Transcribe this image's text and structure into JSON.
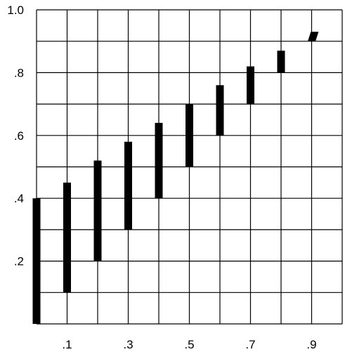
{
  "chart_data": {
    "type": "bar",
    "subtype": "floating-range",
    "title": "",
    "xlabel": "",
    "ylabel": "",
    "xlim": [
      0,
      1.0
    ],
    "ylim": [
      0,
      1.0
    ],
    "grid": true,
    "x_grid_step": 0.1,
    "y_grid_step": 0.1,
    "x_tick_values": [
      0.1,
      0.3,
      0.5,
      0.7,
      0.9
    ],
    "x_tick_labels": [
      ".1",
      ".3",
      ".5",
      ".7",
      ".9"
    ],
    "y_tick_values": [
      0.2,
      0.4,
      0.6,
      0.8,
      1.0
    ],
    "y_tick_labels": [
      ".2",
      ".4",
      ".6",
      ".8",
      "1.0"
    ],
    "bar_color": "#000000",
    "grid_color": "#000000",
    "segments": [
      {
        "x_low": 0.0,
        "x_high": 0.0,
        "y_low": 0.0,
        "y_high": 0.4
      },
      {
        "x_low": 0.1,
        "x_high": 0.1,
        "y_low": 0.1,
        "y_high": 0.45
      },
      {
        "x_low": 0.2,
        "x_high": 0.2,
        "y_low": 0.2,
        "y_high": 0.52
      },
      {
        "x_low": 0.3,
        "x_high": 0.3,
        "y_low": 0.3,
        "y_high": 0.58
      },
      {
        "x_low": 0.4,
        "x_high": 0.4,
        "y_low": 0.4,
        "y_high": 0.64
      },
      {
        "x_low": 0.5,
        "x_high": 0.5,
        "y_low": 0.5,
        "y_high": 0.7
      },
      {
        "x_low": 0.6,
        "x_high": 0.6,
        "y_low": 0.6,
        "y_high": 0.76
      },
      {
        "x_low": 0.7,
        "x_high": 0.7,
        "y_low": 0.7,
        "y_high": 0.82
      },
      {
        "x_low": 0.8,
        "x_high": 0.8,
        "y_low": 0.8,
        "y_high": 0.87
      },
      {
        "x_low": 0.9,
        "x_high": 0.91,
        "y_low": 0.9,
        "y_high": 0.93
      }
    ]
  }
}
